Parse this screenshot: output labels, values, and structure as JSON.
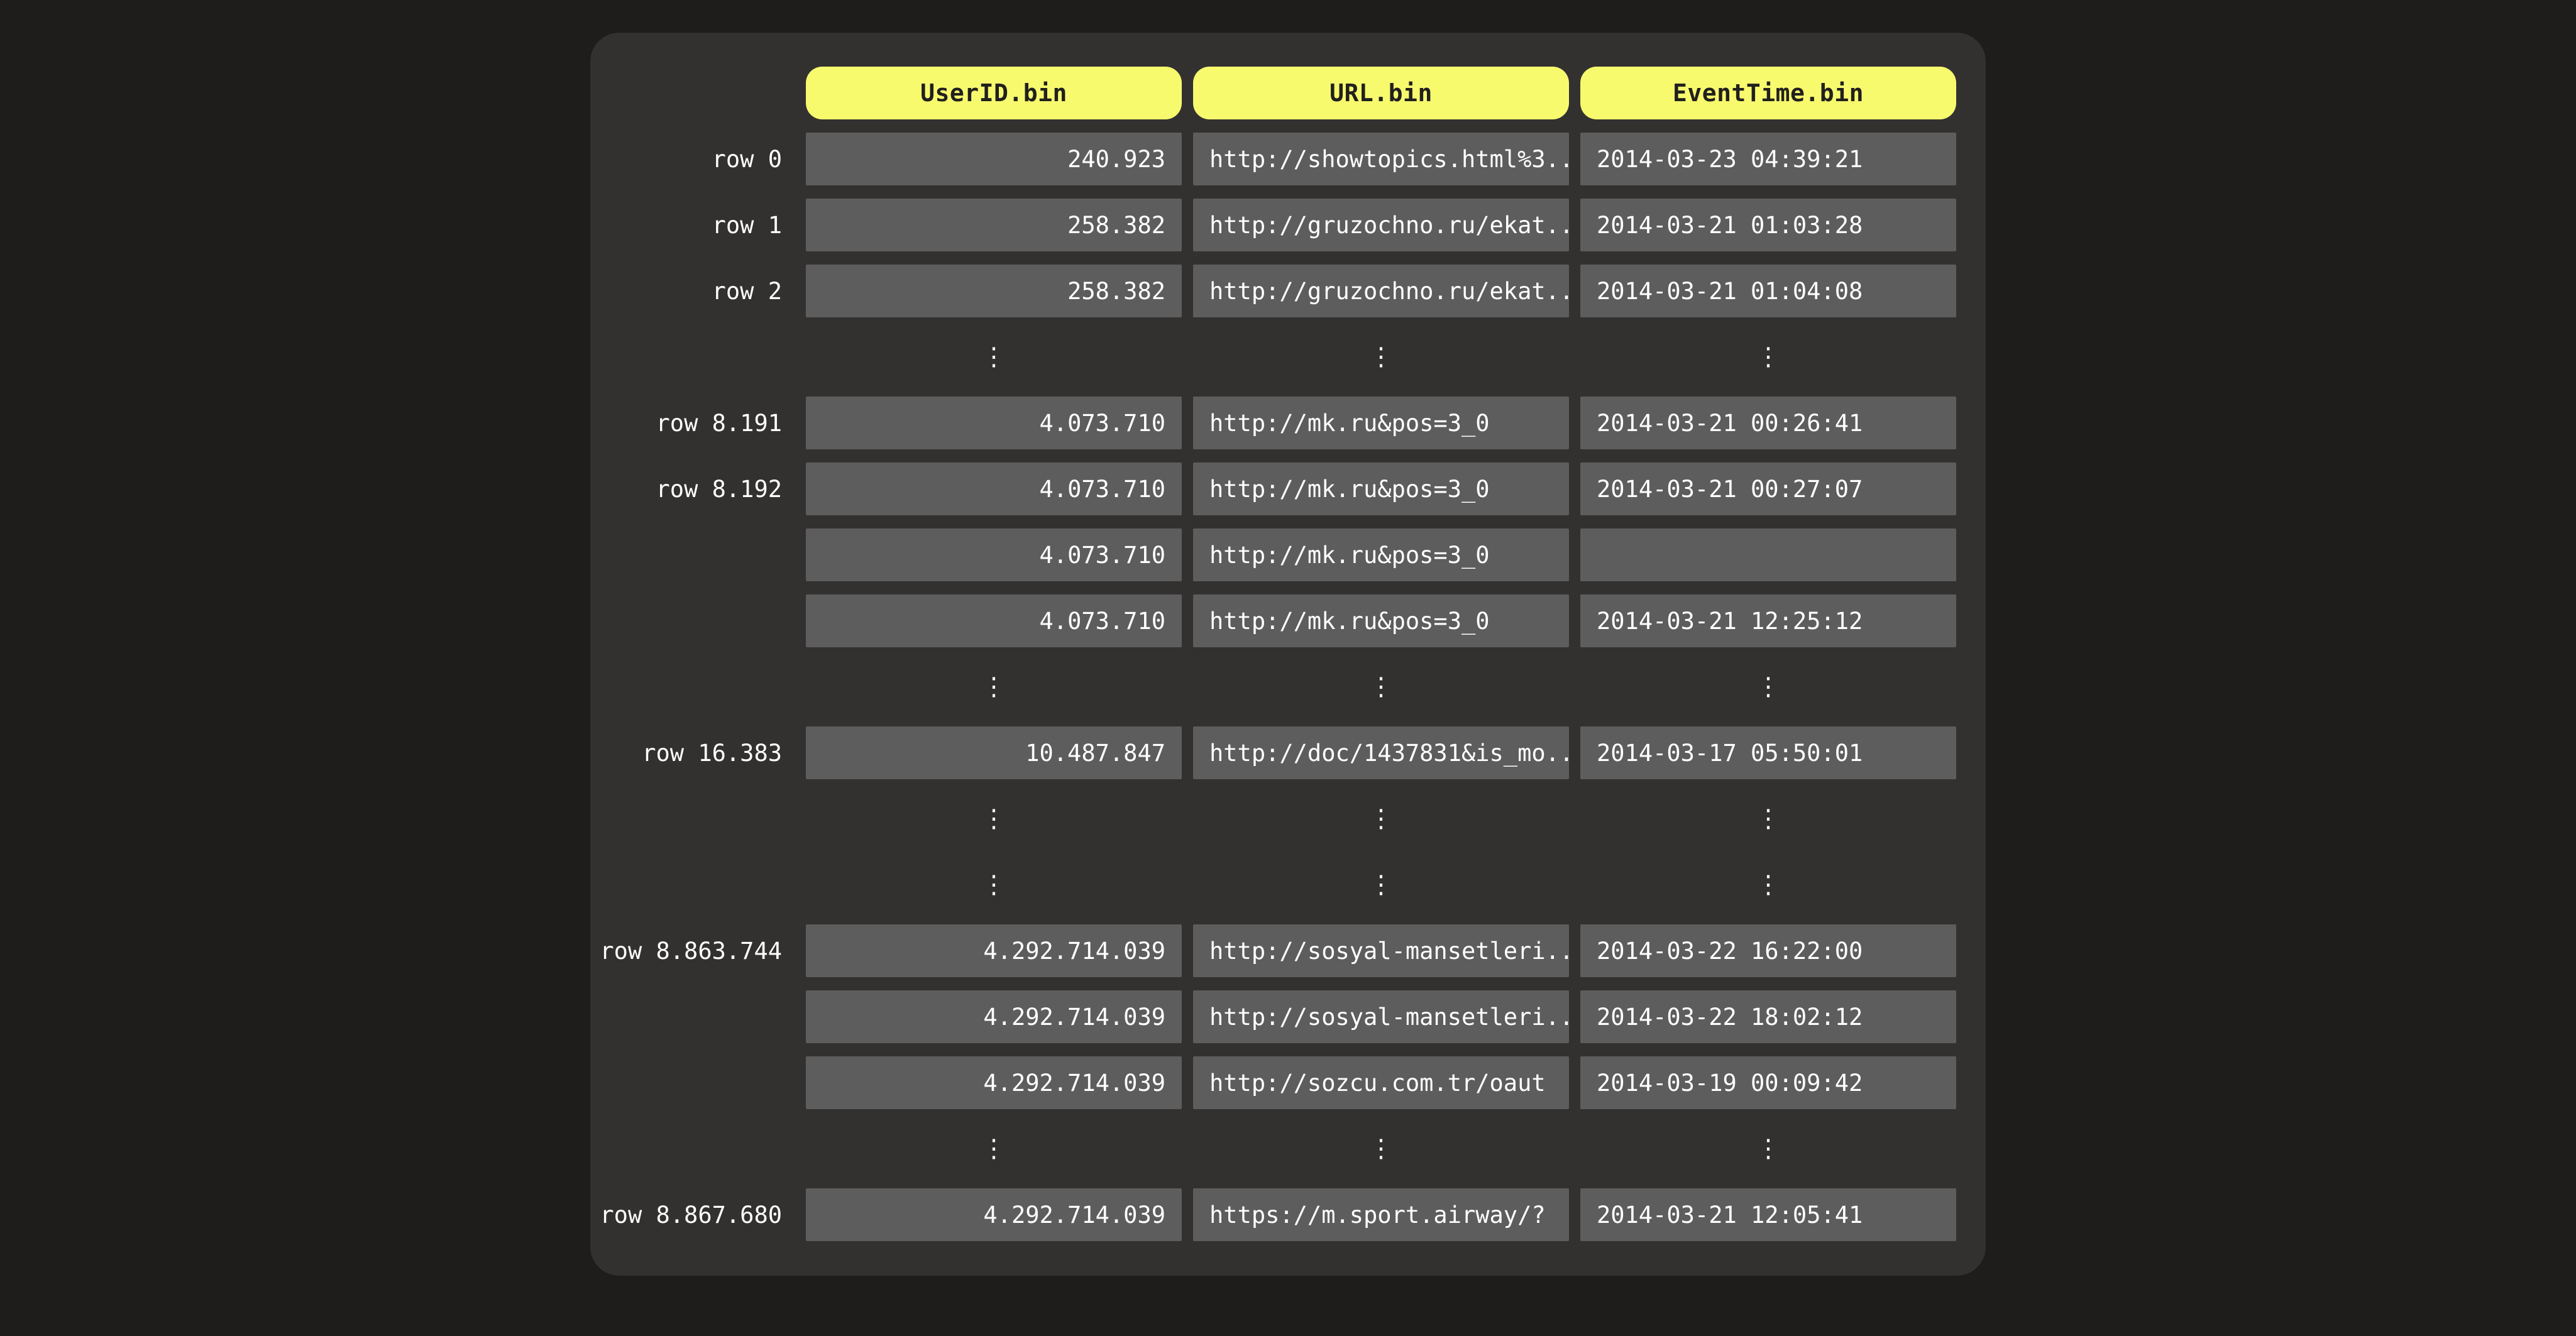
{
  "diagram": {
    "description": "Columnar storage files diagram",
    "columns": [
      {
        "label": "UserID.bin",
        "field": "user_id",
        "align": "right"
      },
      {
        "label": "URL.bin",
        "field": "url",
        "align": "left"
      },
      {
        "label": "EventTime.bin",
        "field": "event_time",
        "align": "left"
      }
    ],
    "ellipsis_glyph": "⋮",
    "rows": [
      {
        "type": "data",
        "label": "row 0",
        "user_id": "240.923",
        "url": "http://showtopics.html%3...",
        "event_time": "2014-03-23 04:39:21"
      },
      {
        "type": "data",
        "label": "row 1",
        "user_id": "258.382",
        "url": "http://gruzochno.ru/ekat...",
        "event_time": "2014-03-21 01:03:28"
      },
      {
        "type": "data",
        "label": "row 2",
        "user_id": "258.382",
        "url": "http://gruzochno.ru/ekat...",
        "event_time": "2014-03-21 01:04:08"
      },
      {
        "type": "ellipsis"
      },
      {
        "type": "data",
        "label": "row 8.191",
        "user_id": "4.073.710",
        "url": "http://mk.ru&pos=3_0",
        "event_time": "2014-03-21 00:26:41"
      },
      {
        "type": "data",
        "label": "row 8.192",
        "user_id": "4.073.710",
        "url": "http://mk.ru&pos=3_0",
        "event_time": "2014-03-21 00:27:07"
      },
      {
        "type": "data",
        "label": "",
        "user_id": "4.073.710",
        "url": "http://mk.ru&pos=3_0",
        "event_time": ""
      },
      {
        "type": "data",
        "label": "",
        "user_id": "4.073.710",
        "url": "http://mk.ru&pos=3_0",
        "event_time": "2014-03-21 12:25:12"
      },
      {
        "type": "ellipsis"
      },
      {
        "type": "data",
        "label": "row 16.383",
        "user_id": "10.487.847",
        "url": "http://doc/1437831&is_mo...",
        "event_time": "2014-03-17 05:50:01"
      },
      {
        "type": "ellipsis"
      },
      {
        "type": "ellipsis"
      },
      {
        "type": "data",
        "label": "row 8.863.744",
        "user_id": "4.292.714.039",
        "url": "http://sosyal-mansetleri...",
        "event_time": "2014-03-22 16:22:00"
      },
      {
        "type": "data",
        "label": "",
        "user_id": "4.292.714.039",
        "url": "http://sosyal-mansetleri...",
        "event_time": "2014-03-22 18:02:12"
      },
      {
        "type": "data",
        "label": "",
        "user_id": "4.292.714.039",
        "url": "http://sozcu.com.tr/oaut",
        "event_time": "2014-03-19 00:09:42"
      },
      {
        "type": "ellipsis"
      },
      {
        "type": "data",
        "label": "row 8.867.680",
        "user_id": "4.292.714.039",
        "url": "https://m.sport.airway/?",
        "event_time": "2014-03-21 12:05:41"
      }
    ],
    "colors": {
      "page_background": "#1e1d1b",
      "panel_background": "#333130",
      "cell_background": "#5e5d5d",
      "header_background": "#f8fa6e",
      "header_text": "#21201e",
      "cell_text": "#ffffff"
    }
  }
}
